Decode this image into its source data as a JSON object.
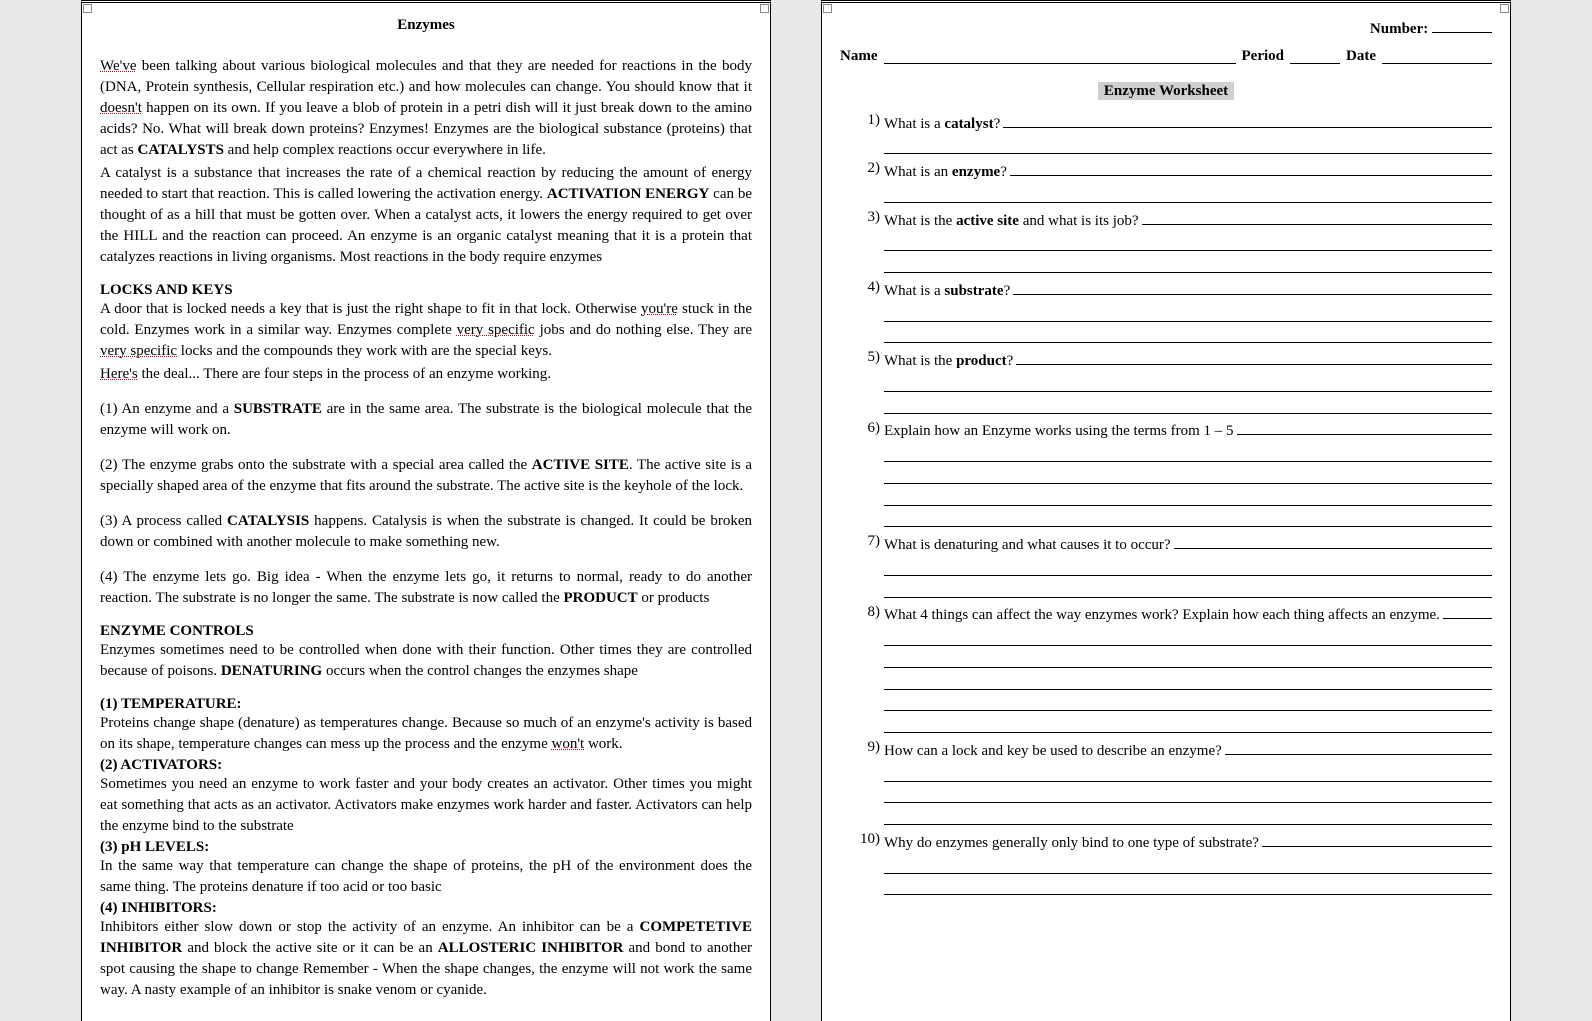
{
  "left": {
    "title": "Enzymes",
    "p1a": "We've",
    "p1b": " been talking about various biological molecules and that they are needed for reactions in the body (DNA, Protein synthesis, Cellular respiration etc.) and how molecules can change. You should know that it ",
    "p1c": "doesn't",
    "p1d": " happen on its own. If you leave a blob of protein in a petri dish will it just break down to the amino acids? No. What will break down proteins? Enzymes! Enzymes are the biological substance (proteins) that act as ",
    "p1e": "CATALYSTS",
    "p1f": " and help complex reactions occur everywhere in life.",
    "p2a": "A catalyst is a substance that increases the rate of a chemical reaction by reducing the amount of energy needed to start that reaction.  This is called lowering the activation energy.  ",
    "p2b": "ACTIVATION ENERGY",
    "p2c": " can be thought of as a hill that must be gotten over. When a catalyst acts, it lowers the energy required to get over the HILL and the reaction can proceed.  An enzyme is an organic catalyst meaning that it is a protein that catalyzes reactions in living organisms.  Most reactions in the body require enzymes",
    "h_locks": "LOCKS AND KEYS",
    "p3a": "A door that is locked needs a key that is just the right shape to fit in that lock. Otherwise ",
    "p3b": "you're",
    "p3c": " stuck in the cold. Enzymes work in a similar way. Enzymes complete ",
    "p3d": "very specific",
    "p3e": " jobs and do nothing else. They are ",
    "p3f": "very specific",
    "p3g": " locks and the compounds they work with are the special keys.",
    "p3h": "Here's",
    "p3i": " the deal... There are four steps in the process of an enzyme working.",
    "step1a": "(1) An enzyme and a ",
    "step1b": "SUBSTRATE",
    "step1c": " are in the same area. The substrate is the biological molecule that the enzyme will work on.",
    "step2a": "(2) The enzyme grabs onto the substrate with a special area called the ",
    "step2b": "ACTIVE SITE",
    "step2c": ". The active site is a specially shaped area of the enzyme that fits around the substrate. The active site is the keyhole of the lock.",
    "step3a": "(3) A process called ",
    "step3b": "CATALYSIS",
    "step3c": " happens. Catalysis is when the substrate is changed. It could be broken down or combined with another molecule to make something new.",
    "step4a": "(4) The enzyme lets go. Big idea - When the enzyme lets go, it returns to normal, ready to do another reaction. The substrate is no longer the same. The substrate is now called the ",
    "step4b": "PRODUCT",
    "step4c": " or products",
    "h_ctrl": "ENZYME CONTROLS",
    "p4a": "Enzymes sometimes need to be controlled when done with their function.  Other times they are controlled because of poisons.  ",
    "p4b": "DENATURING",
    "p4c": " occurs when the control changes the enzymes shape",
    "h_t1": "(1) TEMPERATURE:",
    "t1a": "Proteins change shape (denature) as temperatures change. Because so much of an enzyme's activity is based on its shape, temperature changes can mess up the process and the enzyme ",
    "t1b": "won't",
    "t1c": " work.",
    "h_t2": "(2) ACTIVATORS:",
    "t2": "Sometimes you need an enzyme to work faster and your body creates an activator. Other times you might eat something that acts as an activator. Activators make enzymes work harder and faster. Activators can help the enzyme bind to the substrate",
    "h_t3": "(3) pH LEVELS:",
    "t3": "In the same way that temperature can change the shape of proteins, the pH of the environment does the same thing. The proteins denature if too acid or too basic",
    "h_t4": "(4) INHIBITORS:",
    "t4a": "Inhibitors either slow down or stop the activity of an enzyme. An inhibitor can be a ",
    "t4b": "COMPETETIVE INHIBITOR",
    "t4c": " and block the active site or it can be an ",
    "t4d": "ALLOSTERIC INHIBITOR",
    "t4e": " and bond to another spot causing the shape to change Remember - When the shape changes, the enzyme will not work the same way. A nasty example of an inhibitor is snake venom or cyanide."
  },
  "right": {
    "number_label": "Number: ",
    "name_label": "Name",
    "period_label": "Period",
    "date_label": "Date",
    "ws_title": "Enzyme Worksheet",
    "q": [
      {
        "n": "1)",
        "pre": "What is a ",
        "b": "catalyst",
        "post": "?",
        "extra": 1
      },
      {
        "n": "2)",
        "pre": "What is an ",
        "b": "enzyme",
        "post": "?",
        "extra": 1
      },
      {
        "n": "3)",
        "pre": "What is the ",
        "b": "active site",
        "post": " and what is its job?",
        "extra": 2
      },
      {
        "n": "4)",
        "pre": "What is a ",
        "b": "substrate",
        "post": "?",
        "extra": 2
      },
      {
        "n": "5)",
        "pre": "What is the ",
        "b": "product",
        "post": "?",
        "extra": 2
      },
      {
        "n": "6)",
        "pre": "Explain how an Enzyme works using the terms from 1 – 5",
        "b": "",
        "post": "",
        "extra": 4
      },
      {
        "n": "7)",
        "pre": "What is denaturing and what causes it to occur?",
        "b": "",
        "post": "",
        "extra": 2
      },
      {
        "n": "8)",
        "pre": "What 4 things can affect the way enzymes work?  Explain how each thing affects an enzyme.",
        "b": "",
        "post": "",
        "extra": 5
      },
      {
        "n": "9)",
        "pre": "How can a lock and key be used to describe an enzyme?",
        "b": "",
        "post": "",
        "extra": 3
      },
      {
        "n": "10)",
        "pre": "Why do enzymes generally only bind to one type of substrate?",
        "b": "",
        "post": "",
        "extra": 2
      }
    ]
  }
}
